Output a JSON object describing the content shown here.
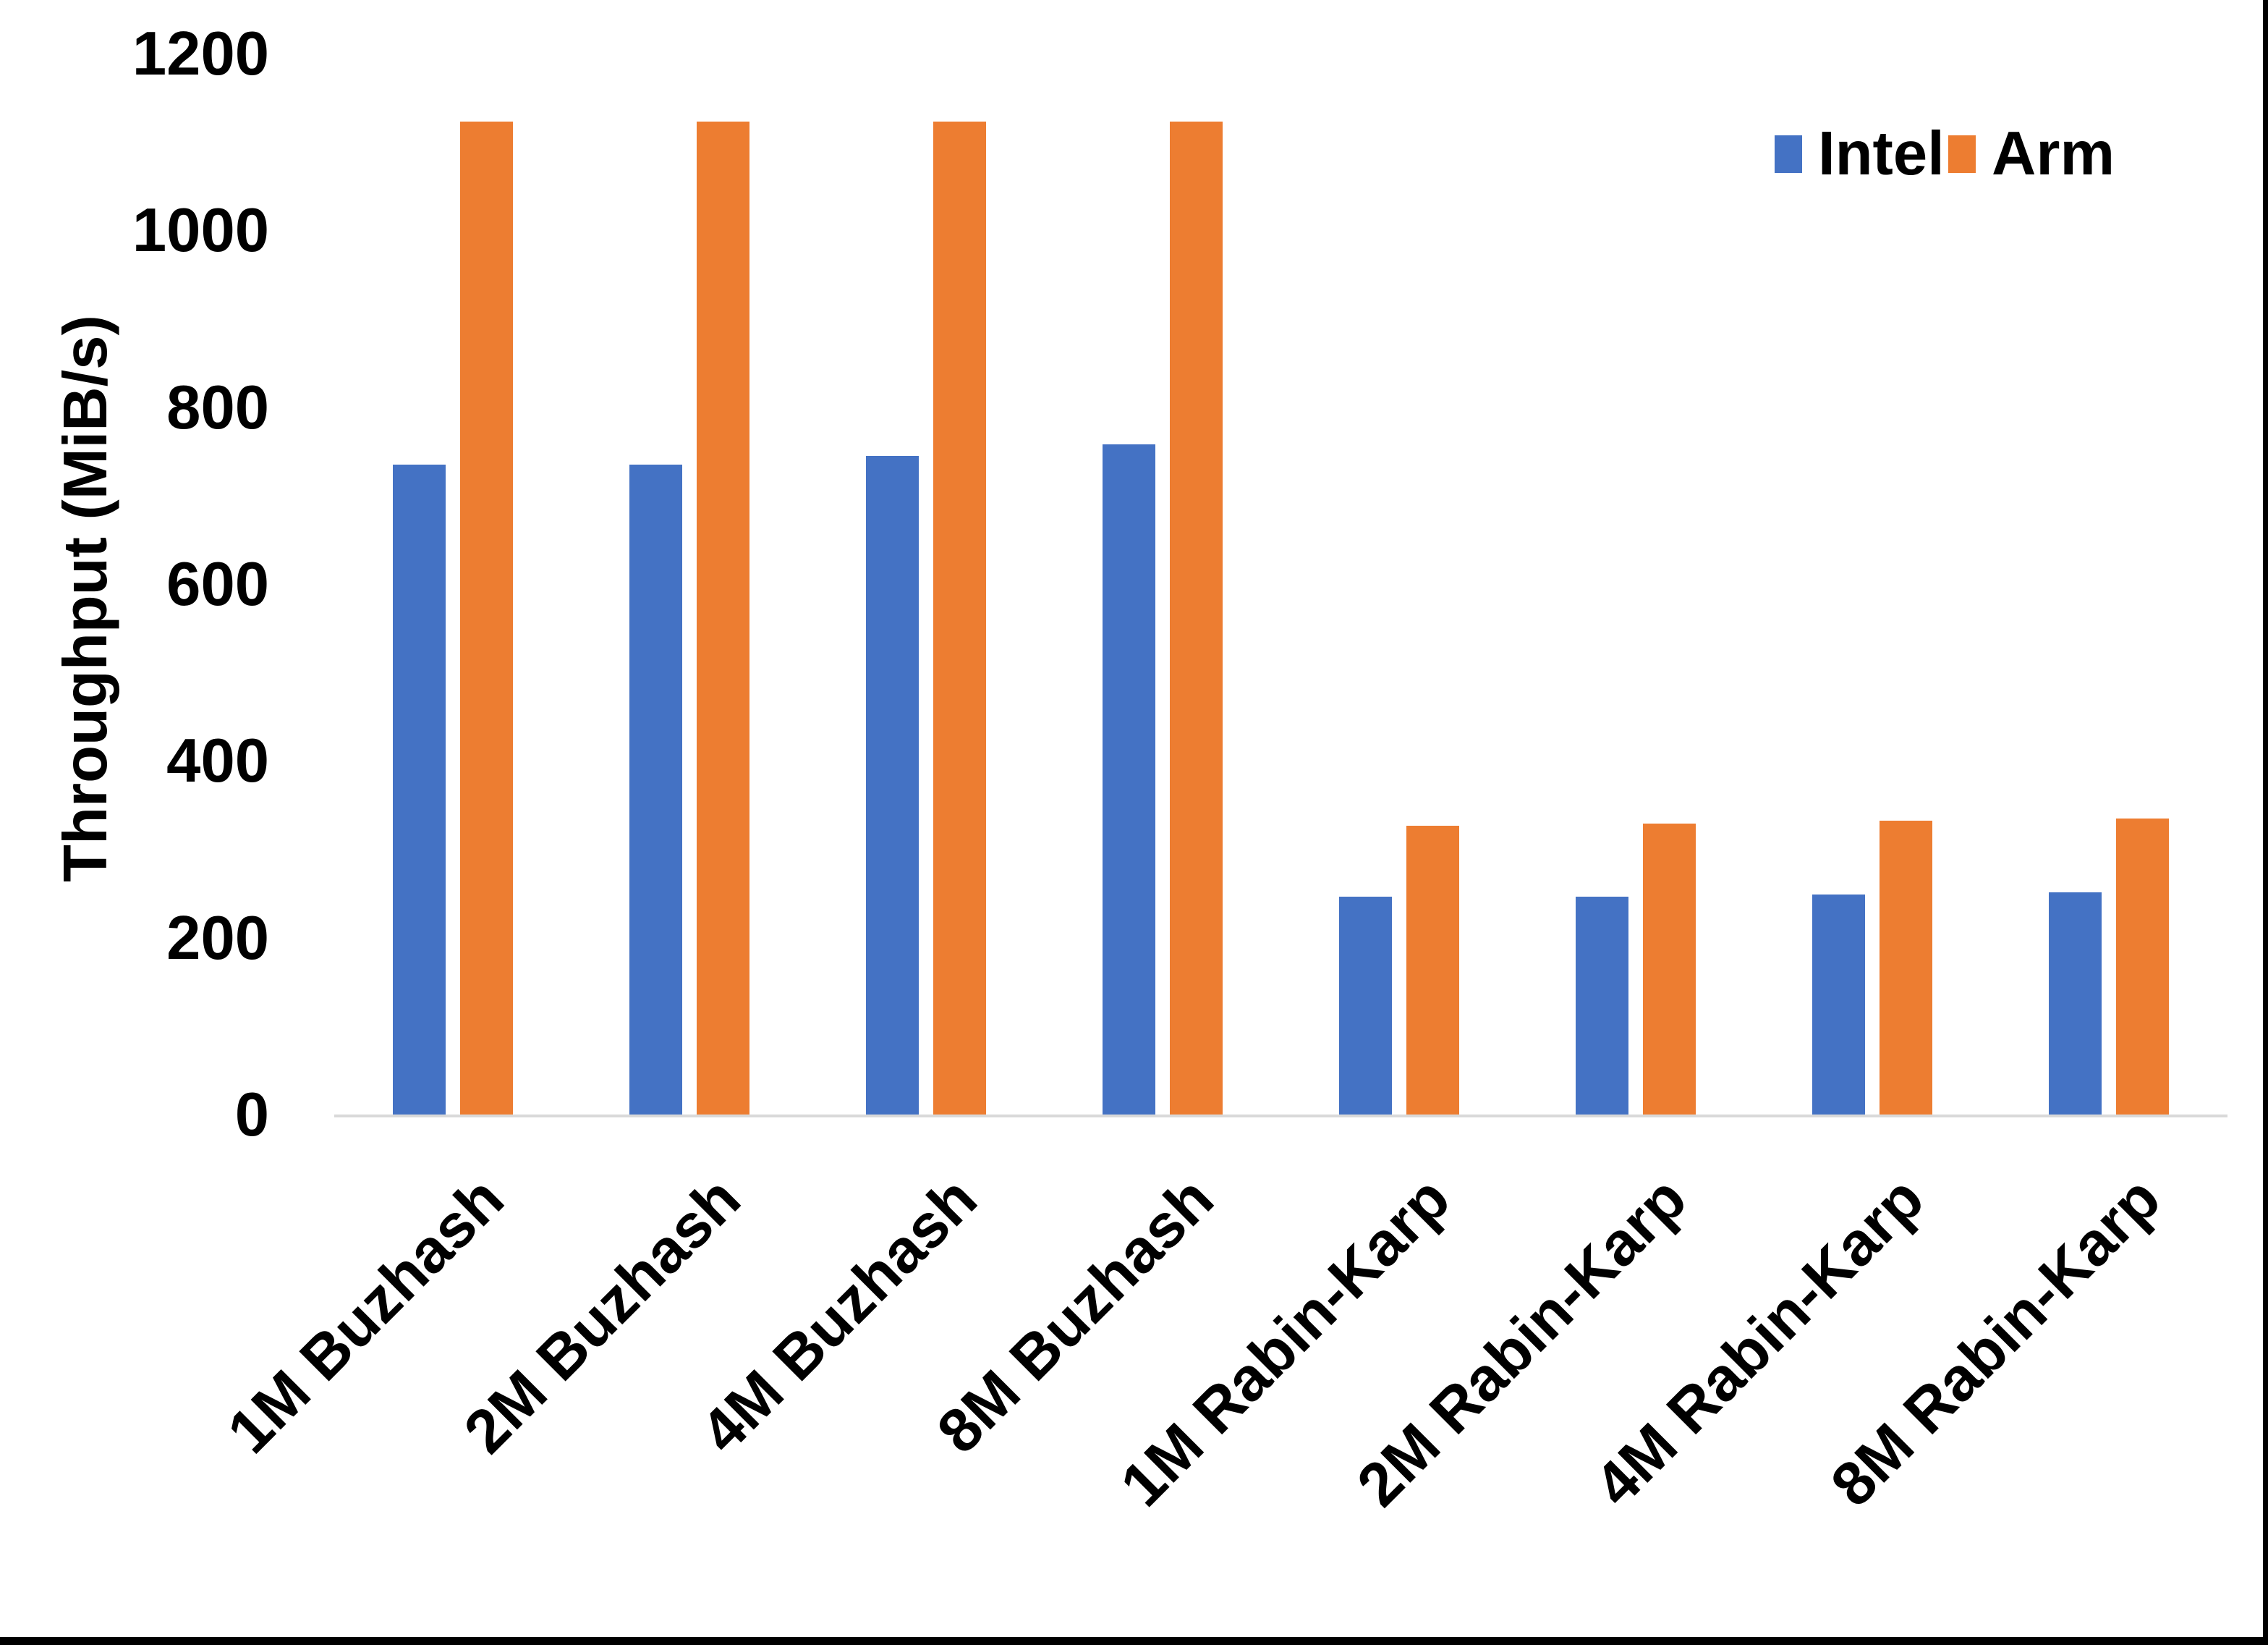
{
  "chart_data": {
    "type": "bar",
    "title": "",
    "xlabel": "",
    "ylabel": "Throughput (MiB/s)",
    "ylim": [
      0,
      1200
    ],
    "yticks": [
      0,
      200,
      400,
      600,
      800,
      1000,
      1200
    ],
    "grid": false,
    "legend_position": "top-right",
    "categories": [
      "1M Buzhash",
      "2M Buzhash",
      "4M Buzhash",
      "8M Buzhash",
      "1M Rabin-Karp",
      "2M Rabin-Karp",
      "4M Rabin-Karp",
      "8M Rabin-Karp"
    ],
    "series": [
      {
        "name": "Intel",
        "color": "#4472C4",
        "values": [
          735,
          735,
          745,
          758,
          246,
          246,
          249,
          251
        ]
      },
      {
        "name": "Arm",
        "color": "#ED7D31",
        "values": [
          1123,
          1123,
          1123,
          1123,
          327,
          329,
          332,
          335
        ]
      }
    ],
    "axis_line_color": "#D9D9D9",
    "text_color": "#000000"
  },
  "window": {
    "right_edge_color": "#000000",
    "bottom_edge_color": "#000000"
  }
}
